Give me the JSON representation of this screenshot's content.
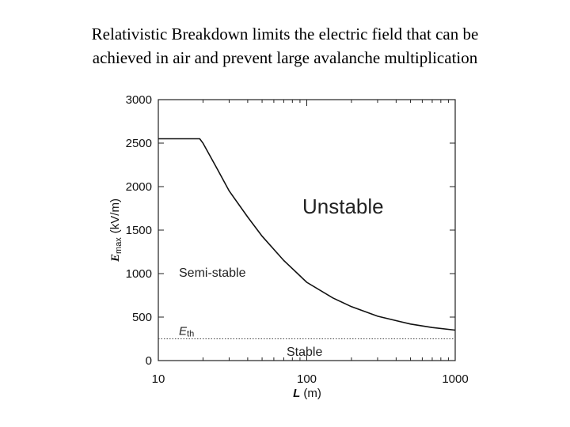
{
  "chart_data": {
    "type": "line",
    "title": [
      "Relativistic Breakdown limits the electric field that can be",
      "achieved in air and prevent large avalanche multiplication"
    ],
    "xlabel": {
      "symbol": "L",
      "unit": "(m)"
    },
    "ylabel": {
      "symbol": "E",
      "subscript": "max",
      "unit": "(kV/m)"
    },
    "x": [
      10,
      15,
      19,
      20,
      25,
      30,
      40,
      50,
      70,
      100,
      150,
      200,
      300,
      500,
      700,
      1000
    ],
    "values": [
      2550,
      2550,
      2550,
      2500,
      2200,
      1950,
      1650,
      1430,
      1150,
      900,
      720,
      620,
      510,
      420,
      380,
      350
    ],
    "color": "#111111",
    "xscale": "log",
    "xlim": [
      10,
      1000
    ],
    "xticks": [
      10,
      100,
      1000
    ],
    "xminorticks": [
      20,
      30,
      40,
      50,
      60,
      70,
      80,
      90,
      200,
      300,
      400,
      500,
      600,
      700,
      800,
      900
    ],
    "ylim": [
      0,
      3000
    ],
    "yticks": [
      0,
      500,
      1000,
      1500,
      2000,
      2500,
      3000
    ],
    "threshold": {
      "value": 250,
      "symbol": "E",
      "subscript": "th"
    },
    "annotations": [
      "Unstable",
      "Semi-stable",
      "Stable"
    ]
  }
}
